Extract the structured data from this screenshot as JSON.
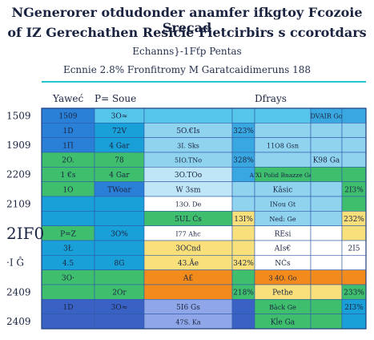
{
  "chart_data": {
    "type": "table",
    "title": "NGenerorer otdudonder anamfer ifkgtoy Fcozoie Srecad",
    "subtitle": "of IZ Gerechathen Resicie Fietcirbirs s ccorotdars",
    "note1": "Echanns}-1Fťp Pentas",
    "note2": "Ecnnie 2.8% Fronfitromy M Garatcaidimeruns 188",
    "columns": [
      "Yaweć",
      "P= Soue",
      "Dfrays"
    ],
    "row_labels": [
      {
        "text": "1509",
        "row": 0,
        "size": 12
      },
      {
        "text": "1909",
        "row": 2,
        "size": 12
      },
      {
        "text": "2209",
        "row": 4,
        "size": 12
      },
      {
        "text": "2109",
        "row": 6,
        "size": 12
      },
      {
        "text": "2IF0",
        "row": 8,
        "size": 20
      },
      {
        "text": "·I Ĝ",
        "row": 10,
        "size": 12
      },
      {
        "text": "2409",
        "row": 12,
        "size": 12
      },
      {
        "text": "2409",
        "row": 14,
        "size": 12
      }
    ],
    "rows": [
      {
        "cells": [
          [
            "1509",
            "#2a7fd6"
          ],
          [
            "3O≈",
            "#56c5ea"
          ],
          [
            "",
            "#56c5ea"
          ],
          [
            "",
            "#56c5ea"
          ],
          [
            "",
            "#56c5ea"
          ],
          [
            "DVAIR Go",
            "#3aa8e0"
          ],
          [
            "",
            "#3aa8e0"
          ]
        ]
      },
      {
        "cells": [
          [
            "1D",
            "#2a7fd6"
          ],
          [
            "72V",
            "#1aa0d8"
          ],
          [
            "5O.€Is",
            "#8fd3ee"
          ],
          [
            "323%",
            "#3aa8e0"
          ],
          [
            "",
            "#8fd3ee"
          ],
          [
            "",
            "#8fd3ee"
          ],
          [
            "",
            "#8fd3ee"
          ]
        ]
      },
      {
        "cells": [
          [
            "1Π",
            "#2a7fd6"
          ],
          [
            "4 Gar",
            "#1aa0d8"
          ],
          [
            "3I. Sks",
            "#8fd3ee"
          ],
          [
            "",
            "#3aa8e0"
          ],
          [
            "11O8 Gsn",
            "#8fd3ee"
          ],
          [
            "",
            "#8fd3ee"
          ],
          [
            "",
            "#8fd3ee"
          ]
        ]
      },
      {
        "cells": [
          [
            "2O.",
            "#3fbf6e"
          ],
          [
            "78",
            "#3fbf6e"
          ],
          [
            "5IO.TNo",
            "#8fd3ee"
          ],
          [
            "328%",
            "#3aa8e0"
          ],
          [
            "",
            "#8fd3ee"
          ],
          [
            "K98 Ga",
            "#8fd3ee"
          ],
          [
            "",
            "#8fd3ee"
          ]
        ]
      },
      {
        "cells": [
          [
            "1 €s",
            "#3fbf6e"
          ],
          [
            "4 Gar",
            "#3fbf6e"
          ],
          [
            "3O.TOo",
            "#bfe6f6"
          ],
          [
            "",
            "#3aa8e0"
          ],
          [
            "A'Xl Polid Bnazze Ges",
            "#3fbf6e"
          ],
          [
            "",
            "#3fbf6e"
          ],
          [
            "",
            "#3fbf6e"
          ]
        ]
      },
      {
        "cells": [
          [
            "1O",
            "#3fbf6e"
          ],
          [
            "TWoar",
            "#2a7fd6"
          ],
          [
            "W 3sm",
            "#bfe6f6"
          ],
          [
            "",
            "#8fd3ee"
          ],
          [
            "Kâsic",
            "#8fd3ee"
          ],
          [
            "",
            "#8fd3ee"
          ],
          [
            "2I3%",
            "#3fbf6e"
          ]
        ]
      },
      {
        "cells": [
          [
            "",
            "#1aa0d8"
          ],
          [
            "",
            "#1aa0d8"
          ],
          [
            "13O. De",
            "#ffffff"
          ],
          [
            "",
            "#8fd3ee"
          ],
          [
            "INou Gt",
            "#8fd3ee"
          ],
          [
            "",
            "#8fd3ee"
          ],
          [
            "",
            "#3fbf6e"
          ]
        ]
      },
      {
        "cells": [
          [
            "",
            "#1aa0d8"
          ],
          [
            "",
            "#1aa0d8"
          ],
          [
            "5UL Ćs",
            "#3fbf6e"
          ],
          [
            "13I%",
            "#f9e07a"
          ],
          [
            "Ned: Ge",
            "#8fd3ee"
          ],
          [
            "",
            "#8fd3ee"
          ],
          [
            "232%",
            "#f9e07a"
          ]
        ]
      },
      {
        "cells": [
          [
            "P=Z",
            "#3fbf6e"
          ],
          [
            "3O%",
            "#1aa0d8"
          ],
          [
            "I77 Ahc",
            "#ffffff"
          ],
          [
            "",
            "#f9e07a"
          ],
          [
            "REsi",
            "#ffffff"
          ],
          [
            "",
            "#ffffff"
          ],
          [
            "",
            "#f9e07a"
          ]
        ]
      },
      {
        "cells": [
          [
            "3Ł",
            "#1aa0d8"
          ],
          [
            "",
            "#1aa0d8"
          ],
          [
            "3OCnd",
            "#f9e07a"
          ],
          [
            "",
            "#f9e07a"
          ],
          [
            "AIs€",
            "#ffffff"
          ],
          [
            "",
            "#ffffff"
          ],
          [
            "2I5",
            "#ffffff"
          ]
        ]
      },
      {
        "cells": [
          [
            "4.5",
            "#1aa0d8"
          ],
          [
            "8G",
            "#1aa0d8"
          ],
          [
            "43.Ăe",
            "#f9e07a"
          ],
          [
            "342%",
            "#f9e07a"
          ],
          [
            "NĆs",
            "#ffffff"
          ],
          [
            "",
            "#ffffff"
          ],
          [
            "",
            "#ffffff"
          ]
        ]
      },
      {
        "cells": [
          [
            "3O·",
            "#3fbf6e"
          ],
          [
            "",
            "#3fbf6e"
          ],
          [
            "A£",
            "#f28b1c"
          ],
          [
            "",
            "#3fbf6e"
          ],
          [
            "3 4O. Go",
            "#f28b1c"
          ],
          [
            "",
            "#f28b1c"
          ],
          [
            "",
            "#f28b1c"
          ]
        ]
      },
      {
        "cells": [
          [
            "",
            "#3fbf6e"
          ],
          [
            "2Or",
            "#3fbf6e"
          ],
          [
            "",
            "#f28b1c"
          ],
          [
            "218%",
            "#3fbf6e"
          ],
          [
            "Pethe",
            "#f9e07a"
          ],
          [
            "",
            "#f9e07a"
          ],
          [
            "233%",
            "#3fbf6e"
          ]
        ]
      },
      {
        "cells": [
          [
            "1D",
            "#3a62c4"
          ],
          [
            "3O≈",
            "#3a62c4"
          ],
          [
            "5I6 Gs",
            "#8fa6e8"
          ],
          [
            "",
            "#3a62c4"
          ],
          [
            "Bàck Ge",
            "#3fbf6e"
          ],
          [
            "",
            "#3fbf6e"
          ],
          [
            "2I3%",
            "#1aa0d8"
          ]
        ]
      },
      {
        "cells": [
          [
            "",
            "#3a62c4"
          ],
          [
            "",
            "#3a62c4"
          ],
          [
            "47S. Ka",
            "#8fa6e8"
          ],
          [
            "",
            "#3a62c4"
          ],
          [
            "Kĺe Ga",
            "#3fbf6e"
          ],
          [
            "",
            "#3fbf6e"
          ],
          [
            "",
            "#1aa0d8"
          ]
        ]
      }
    ]
  }
}
